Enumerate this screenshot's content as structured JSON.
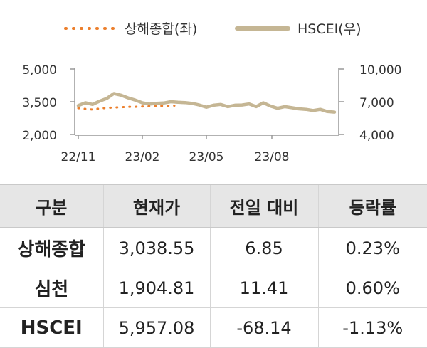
{
  "chart_data": {
    "type": "line",
    "legend": {
      "placement": "top",
      "series1": "상해종합(좌)",
      "series2": "HSCEI(우)"
    },
    "x_ticks": [
      "22/11",
      "23/02",
      "23/05",
      "23/08"
    ],
    "y_left": {
      "ticks": [
        "5,000",
        "3,500",
        "2,000"
      ],
      "range": [
        2000,
        5000
      ]
    },
    "y_right": {
      "ticks": [
        "10,000",
        "7,000",
        "4,000"
      ],
      "range": [
        4000,
        10000
      ]
    },
    "colors": {
      "series1": "#ec7f2c",
      "series2": "#c5b694",
      "axis": "#999999"
    },
    "series": [
      {
        "name": "상해종합(좌)",
        "axis": "left",
        "style": "dotted",
        "x": [
          "22/11",
          "22/11",
          "22/11",
          "22/12",
          "22/12",
          "22/12",
          "23/01",
          "23/01",
          "23/01",
          "23/02",
          "23/02",
          "23/02",
          "23/03",
          "23/03"
        ],
        "values": [
          3205,
          3170,
          3140,
          3190,
          3215,
          3235,
          3250,
          3265,
          3270,
          3280,
          3290,
          3300,
          3310,
          3320
        ]
      },
      {
        "name": "HSCEI(우)",
        "axis": "right",
        "style": "solid",
        "x": [
          "22/11",
          "22/11",
          "22/11",
          "22/12",
          "22/12",
          "22/12",
          "23/01",
          "23/01",
          "23/01",
          "23/02",
          "23/02",
          "23/02",
          "23/03",
          "23/03",
          "23/03",
          "23/04",
          "23/04",
          "23/04",
          "23/05",
          "23/05",
          "23/05",
          "23/06",
          "23/06",
          "23/06",
          "23/07",
          "23/07",
          "23/07",
          "23/08",
          "23/08",
          "23/08",
          "23/09",
          "23/09",
          "23/09",
          "23/10",
          "23/10",
          "23/10",
          "23/11"
        ],
        "values": [
          6650,
          6900,
          6750,
          7050,
          7300,
          7750,
          7600,
          7350,
          7150,
          6900,
          6780,
          6850,
          6880,
          7000,
          6950,
          6920,
          6850,
          6700,
          6500,
          6680,
          6750,
          6550,
          6680,
          6700,
          6800,
          6550,
          6900,
          6600,
          6400,
          6550,
          6450,
          6350,
          6300,
          6200,
          6300,
          6100,
          6050
        ]
      }
    ]
  },
  "table": {
    "headers": [
      "구분",
      "현재가",
      "전일 대비",
      "등락률"
    ],
    "rows": [
      [
        "상해종합",
        "3,038.55",
        "6.85",
        "0.23%"
      ],
      [
        "심천",
        "1,904.81",
        "11.41",
        "0.60%"
      ],
      [
        "HSCEI",
        "5,957.08",
        "-68.14",
        "-1.13%"
      ]
    ]
  }
}
